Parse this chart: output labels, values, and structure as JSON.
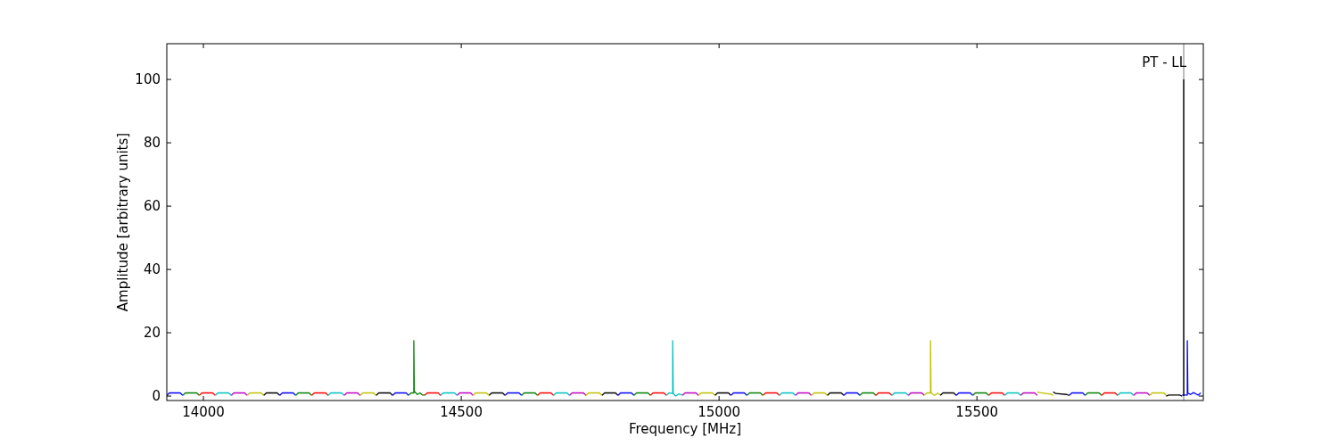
{
  "chart_data": {
    "type": "line",
    "xlabel": "Frequency [MHz]",
    "ylabel": "Amplitude [arbitrary units]",
    "xlim": [
      13929,
      15939
    ],
    "xticks": [
      14000,
      14500,
      15000,
      15500
    ],
    "ylim": [
      -1.4,
      111.3
    ],
    "yticks": [
      0,
      20,
      40,
      60,
      80,
      100
    ],
    "grid": false,
    "ref_lines": [
      {
        "axis": "x",
        "value": 15901,
        "label": "PT - LL",
        "color": "#bbbbbb"
      }
    ],
    "series": [
      {
        "color": "#0000ff",
        "x": [
          13929,
          13934,
          13955,
          13960
        ],
        "values": [
          0.2,
          1,
          1,
          0.2
        ]
      },
      {
        "color": "#008000",
        "x": [
          13960,
          13965,
          13987,
          13992
        ],
        "values": [
          0.2,
          1,
          1,
          0.2
        ]
      },
      {
        "color": "#ff0000",
        "x": [
          13992,
          13997,
          14018,
          14023
        ],
        "values": [
          0.2,
          1,
          1,
          0.2
        ]
      },
      {
        "color": "#00bfbf",
        "x": [
          14023,
          14028,
          14049,
          14054
        ],
        "values": [
          0.2,
          1,
          1,
          0.2
        ]
      },
      {
        "color": "#bf00bf",
        "x": [
          14054,
          14059,
          14080,
          14085
        ],
        "values": [
          0.2,
          1,
          1,
          0.2
        ]
      },
      {
        "color": "#bfbf00",
        "x": [
          14085,
          14090,
          14112,
          14117
        ],
        "values": [
          0.2,
          1,
          1,
          0.2
        ]
      },
      {
        "color": "#000000",
        "x": [
          14117,
          14122,
          14143,
          14148
        ],
        "values": [
          0.2,
          1,
          1,
          0.2
        ]
      },
      {
        "color": "#0000ff",
        "x": [
          14148,
          14153,
          14174,
          14179
        ],
        "values": [
          0.2,
          1,
          1,
          0.2
        ]
      },
      {
        "color": "#008000",
        "x": [
          14179,
          14184,
          14205,
          14210
        ],
        "values": [
          0.2,
          1,
          1,
          0.2
        ]
      },
      {
        "color": "#ff0000",
        "x": [
          14210,
          14215,
          14237,
          14242
        ],
        "values": [
          0.2,
          1,
          1,
          0.2
        ]
      },
      {
        "color": "#00bfbf",
        "x": [
          14242,
          14247,
          14268,
          14273
        ],
        "values": [
          0.2,
          1,
          1,
          0.2
        ]
      },
      {
        "color": "#bf00bf",
        "x": [
          14273,
          14278,
          14299,
          14304
        ],
        "values": [
          0.2,
          1,
          1,
          0.2
        ]
      },
      {
        "color": "#bfbf00",
        "x": [
          14304,
          14309,
          14330,
          14335
        ],
        "values": [
          0.2,
          1,
          1,
          0.2
        ]
      },
      {
        "color": "#000000",
        "x": [
          14335,
          14340,
          14362,
          14367
        ],
        "values": [
          0.2,
          1,
          1,
          0.2
        ]
      },
      {
        "color": "#0000ff",
        "x": [
          14367,
          14372,
          14393,
          14398
        ],
        "values": [
          0.2,
          1,
          1,
          0.2
        ]
      },
      {
        "color": "#008000",
        "x": [
          14398,
          14403,
          14408,
          14408,
          14409,
          14415,
          14420,
          14425,
          14429
        ],
        "values": [
          0.3,
          1,
          1,
          17.5,
          1.5,
          0.5,
          1,
          0.3,
          0.3
        ]
      },
      {
        "color": "#ff0000",
        "x": [
          14429,
          14434,
          14455,
          14460
        ],
        "values": [
          0.2,
          1,
          1,
          0.2
        ]
      },
      {
        "color": "#00bfbf",
        "x": [
          14460,
          14465,
          14487,
          14492
        ],
        "values": [
          0.2,
          1,
          1,
          0.2
        ]
      },
      {
        "color": "#bf00bf",
        "x": [
          14492,
          14497,
          14518,
          14523
        ],
        "values": [
          0.2,
          1,
          1,
          0.2
        ]
      },
      {
        "color": "#bfbf00",
        "x": [
          14523,
          14528,
          14549,
          14554
        ],
        "values": [
          0.2,
          1,
          1,
          0.2
        ]
      },
      {
        "color": "#000000",
        "x": [
          14554,
          14559,
          14580,
          14585
        ],
        "values": [
          0.2,
          1,
          1,
          0.2
        ]
      },
      {
        "color": "#0000ff",
        "x": [
          14585,
          14590,
          14612,
          14617
        ],
        "values": [
          0.2,
          1,
          1,
          0.2
        ]
      },
      {
        "color": "#008000",
        "x": [
          14617,
          14622,
          14643,
          14648
        ],
        "values": [
          0.2,
          1,
          1,
          0.2
        ]
      },
      {
        "color": "#ff0000",
        "x": [
          14648,
          14653,
          14674,
          14679
        ],
        "values": [
          0.2,
          1,
          1,
          0.2
        ]
      },
      {
        "color": "#00bfbf",
        "x": [
          14679,
          14684,
          14705,
          14710
        ],
        "values": [
          0.2,
          1,
          1,
          0.2
        ]
      },
      {
        "color": "#bf00bf",
        "x": [
          14710,
          14715,
          14737,
          14742
        ],
        "values": [
          0.2,
          1,
          1,
          0.2
        ]
      },
      {
        "color": "#bfbf00",
        "x": [
          14742,
          14747,
          14768,
          14773
        ],
        "values": [
          0.2,
          1,
          1,
          0.2
        ]
      },
      {
        "color": "#000000",
        "x": [
          14773,
          14778,
          14799,
          14804
        ],
        "values": [
          0.2,
          1,
          1,
          0.2
        ]
      },
      {
        "color": "#0000ff",
        "x": [
          14804,
          14809,
          14830,
          14835
        ],
        "values": [
          0.2,
          1,
          1,
          0.2
        ]
      },
      {
        "color": "#008000",
        "x": [
          14835,
          14840,
          14862,
          14867
        ],
        "values": [
          0.2,
          1,
          1,
          0.2
        ]
      },
      {
        "color": "#ff0000",
        "x": [
          14867,
          14872,
          14893,
          14898
        ],
        "values": [
          0.2,
          1,
          1,
          0.2
        ]
      },
      {
        "color": "#00bfbf",
        "x": [
          14898,
          14903,
          14910,
          14910,
          14911,
          14916,
          14922,
          14929
        ],
        "values": [
          0.3,
          1,
          0.8,
          17.5,
          0.8,
          0,
          0.7,
          0.3
        ]
      },
      {
        "color": "#bf00bf",
        "x": [
          14929,
          14934,
          14955,
          14960
        ],
        "values": [
          0.2,
          1,
          1,
          0.2
        ]
      },
      {
        "color": "#bfbf00",
        "x": [
          14960,
          14965,
          14987,
          14992
        ],
        "values": [
          0.2,
          1,
          1,
          0.2
        ]
      },
      {
        "color": "#000000",
        "x": [
          14992,
          14997,
          15018,
          15023
        ],
        "values": [
          0.2,
          1,
          1,
          0.2
        ]
      },
      {
        "color": "#0000ff",
        "x": [
          15023,
          15028,
          15049,
          15054
        ],
        "values": [
          0.2,
          1,
          1,
          0.2
        ]
      },
      {
        "color": "#008000",
        "x": [
          15054,
          15059,
          15080,
          15085
        ],
        "values": [
          0.2,
          1,
          1,
          0.2
        ]
      },
      {
        "color": "#ff0000",
        "x": [
          15085,
          15090,
          15112,
          15117
        ],
        "values": [
          0.2,
          1,
          1,
          0.2
        ]
      },
      {
        "color": "#00bfbf",
        "x": [
          15117,
          15122,
          15143,
          15148
        ],
        "values": [
          0.2,
          1,
          1,
          0.2
        ]
      },
      {
        "color": "#bf00bf",
        "x": [
          15148,
          15153,
          15174,
          15179
        ],
        "values": [
          0.2,
          1,
          1,
          0.2
        ]
      },
      {
        "color": "#bfbf00",
        "x": [
          15179,
          15184,
          15205,
          15210
        ],
        "values": [
          0.2,
          1,
          1,
          0.2
        ]
      },
      {
        "color": "#000000",
        "x": [
          15210,
          15215,
          15237,
          15242
        ],
        "values": [
          0.2,
          1,
          1,
          0.2
        ]
      },
      {
        "color": "#0000ff",
        "x": [
          15242,
          15247,
          15268,
          15273
        ],
        "values": [
          0.2,
          1,
          1,
          0.2
        ]
      },
      {
        "color": "#008000",
        "x": [
          15273,
          15278,
          15299,
          15304
        ],
        "values": [
          0.2,
          1,
          1,
          0.2
        ]
      },
      {
        "color": "#ff0000",
        "x": [
          15304,
          15309,
          15330,
          15335
        ],
        "values": [
          0.2,
          1,
          1,
          0.2
        ]
      },
      {
        "color": "#00bfbf",
        "x": [
          15335,
          15340,
          15362,
          15367
        ],
        "values": [
          0.2,
          1,
          1,
          0.2
        ]
      },
      {
        "color": "#bf00bf",
        "x": [
          15367,
          15372,
          15393,
          15398
        ],
        "values": [
          0.2,
          1,
          1,
          0.2
        ]
      },
      {
        "color": "#bfbf00",
        "x": [
          15398,
          15403,
          15410,
          15410,
          15411,
          15418,
          15424,
          15429
        ],
        "values": [
          0.3,
          1,
          1,
          17.5,
          1,
          0.2,
          0.9,
          0.3
        ]
      },
      {
        "color": "#000000",
        "x": [
          15429,
          15434,
          15455,
          15460
        ],
        "values": [
          0.2,
          1,
          1,
          0.2
        ]
      },
      {
        "color": "#0000ff",
        "x": [
          15460,
          15465,
          15487,
          15492
        ],
        "values": [
          0.2,
          1,
          1,
          0.2
        ]
      },
      {
        "color": "#008000",
        "x": [
          15492,
          15497,
          15518,
          15523
        ],
        "values": [
          0.2,
          1,
          1,
          0.2
        ]
      },
      {
        "color": "#ff0000",
        "x": [
          15523,
          15528,
          15549,
          15554
        ],
        "values": [
          0.2,
          1,
          1,
          0.2
        ]
      },
      {
        "color": "#00bfbf",
        "x": [
          15554,
          15559,
          15580,
          15585
        ],
        "values": [
          0.2,
          1,
          1,
          0.2
        ]
      },
      {
        "color": "#bf00bf",
        "x": [
          15585,
          15590,
          15612,
          15617
        ],
        "values": [
          0.2,
          1,
          1,
          0.2
        ]
      },
      {
        "color": "#bfbf00",
        "x": [
          15617,
          15622,
          15643,
          15648
        ],
        "values": [
          1.3,
          1.1,
          0.6,
          0.2
        ]
      },
      {
        "color": "#000000",
        "x": [
          15648,
          15653,
          15674,
          15679
        ],
        "values": [
          1.3,
          0.8,
          0.5,
          0.2
        ]
      },
      {
        "color": "#0000ff",
        "x": [
          15679,
          15684,
          15705,
          15710
        ],
        "values": [
          0.2,
          1,
          1,
          0.2
        ]
      },
      {
        "color": "#008000",
        "x": [
          15710,
          15715,
          15737,
          15742
        ],
        "values": [
          0.2,
          1,
          1,
          0.2
        ]
      },
      {
        "color": "#ff0000",
        "x": [
          15742,
          15747,
          15768,
          15773
        ],
        "values": [
          0.2,
          1,
          1,
          0.2
        ]
      },
      {
        "color": "#00bfbf",
        "x": [
          15773,
          15778,
          15799,
          15804
        ],
        "values": [
          0.2,
          1,
          1,
          0.2
        ]
      },
      {
        "color": "#bf00bf",
        "x": [
          15804,
          15809,
          15830,
          15835
        ],
        "values": [
          0.2,
          1,
          1,
          0.2
        ]
      },
      {
        "color": "#bfbf00",
        "x": [
          15835,
          15840,
          15862,
          15867
        ],
        "values": [
          0.2,
          1,
          1,
          0.2
        ]
      },
      {
        "color": "#000000",
        "x": [
          15867,
          15872,
          15893,
          15898
        ],
        "values": [
          0,
          0.3,
          0.3,
          0
        ]
      },
      {
        "color": "#0000ff",
        "x": [
          15898,
          15908,
          15908,
          15909,
          15914,
          15920,
          15929,
          15934
        ],
        "values": [
          0.3,
          0.3,
          17.5,
          1,
          0.5,
          1.1,
          0.3,
          1
        ]
      },
      {
        "color": "#000000",
        "x": [
          15901,
          15901
        ],
        "values": [
          0,
          100
        ]
      }
    ]
  }
}
